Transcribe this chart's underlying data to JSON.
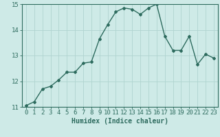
{
  "x": [
    0,
    1,
    2,
    3,
    4,
    5,
    6,
    7,
    8,
    9,
    10,
    11,
    12,
    13,
    14,
    15,
    16,
    17,
    18,
    19,
    20,
    21,
    22,
    23
  ],
  "y": [
    11.05,
    11.2,
    11.7,
    11.8,
    12.05,
    12.35,
    12.35,
    12.7,
    12.75,
    13.65,
    14.2,
    14.7,
    14.85,
    14.8,
    14.6,
    14.85,
    15.0,
    13.75,
    13.2,
    13.2,
    13.75,
    12.65,
    13.05,
    12.9
  ],
  "line_color": "#2d6b5e",
  "bg_color": "#ceeae7",
  "grid_color": "#b0d4d0",
  "xlabel": "Humidex (Indice chaleur)",
  "ylim": [
    11,
    15
  ],
  "xlim_min": -0.5,
  "xlim_max": 23.5,
  "yticks": [
    11,
    12,
    13,
    14,
    15
  ],
  "xticks": [
    0,
    1,
    2,
    3,
    4,
    5,
    6,
    7,
    8,
    9,
    10,
    11,
    12,
    13,
    14,
    15,
    16,
    17,
    18,
    19,
    20,
    21,
    22,
    23
  ],
  "xlabel_fontsize": 7,
  "tick_fontsize": 6.5,
  "marker": "D",
  "marker_size": 2.0,
  "line_width": 1.0
}
